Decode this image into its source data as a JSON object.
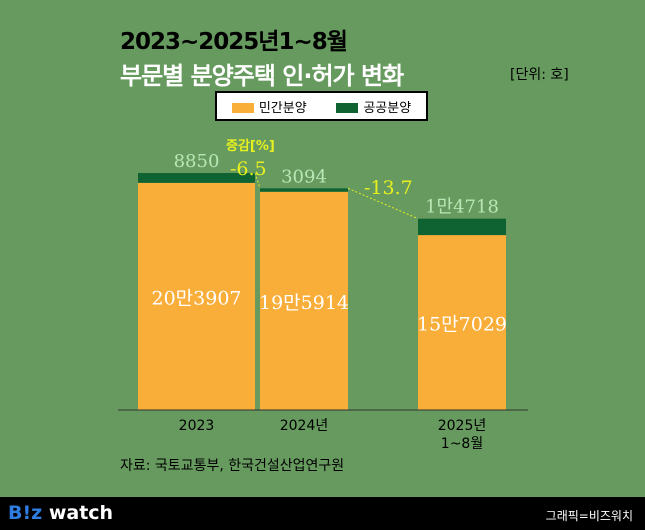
{
  "title_line1": "2023~2025년1~8월",
  "title_line2": "부문별 분양주택 인·허가 변화",
  "unit": "[단위: 호]",
  "source": "자료: 국토교통부, 한국건설산업연구원",
  "footer": {
    "logo_b": "B!z",
    "logo_rest": " watch",
    "credit": "그래픽=비즈워치"
  },
  "change_label": "증감[%]",
  "chart_data": {
    "type": "bar",
    "stacked": true,
    "title": "2023~2025년1~8월 부문별 분양주택 인·허가 변화",
    "categories": [
      "2023",
      "2024년",
      "2025년\n1~8월"
    ],
    "series": [
      {
        "name": "민간분양",
        "color": "#f9ae3a",
        "values": [
          203907,
          195914,
          157029
        ],
        "labels": [
          "20만3907",
          "19만5914",
          "15만7029"
        ]
      },
      {
        "name": "공공분양",
        "color": "#0f6333",
        "values": [
          8850,
          3094,
          14718
        ],
        "labels": [
          "8850",
          "3094",
          "1만4718"
        ]
      }
    ],
    "changes_pct": [
      -6.5,
      -13.7
    ],
    "change_labels": [
      "-6.5",
      "-13.7"
    ],
    "legend": "top-center"
  }
}
